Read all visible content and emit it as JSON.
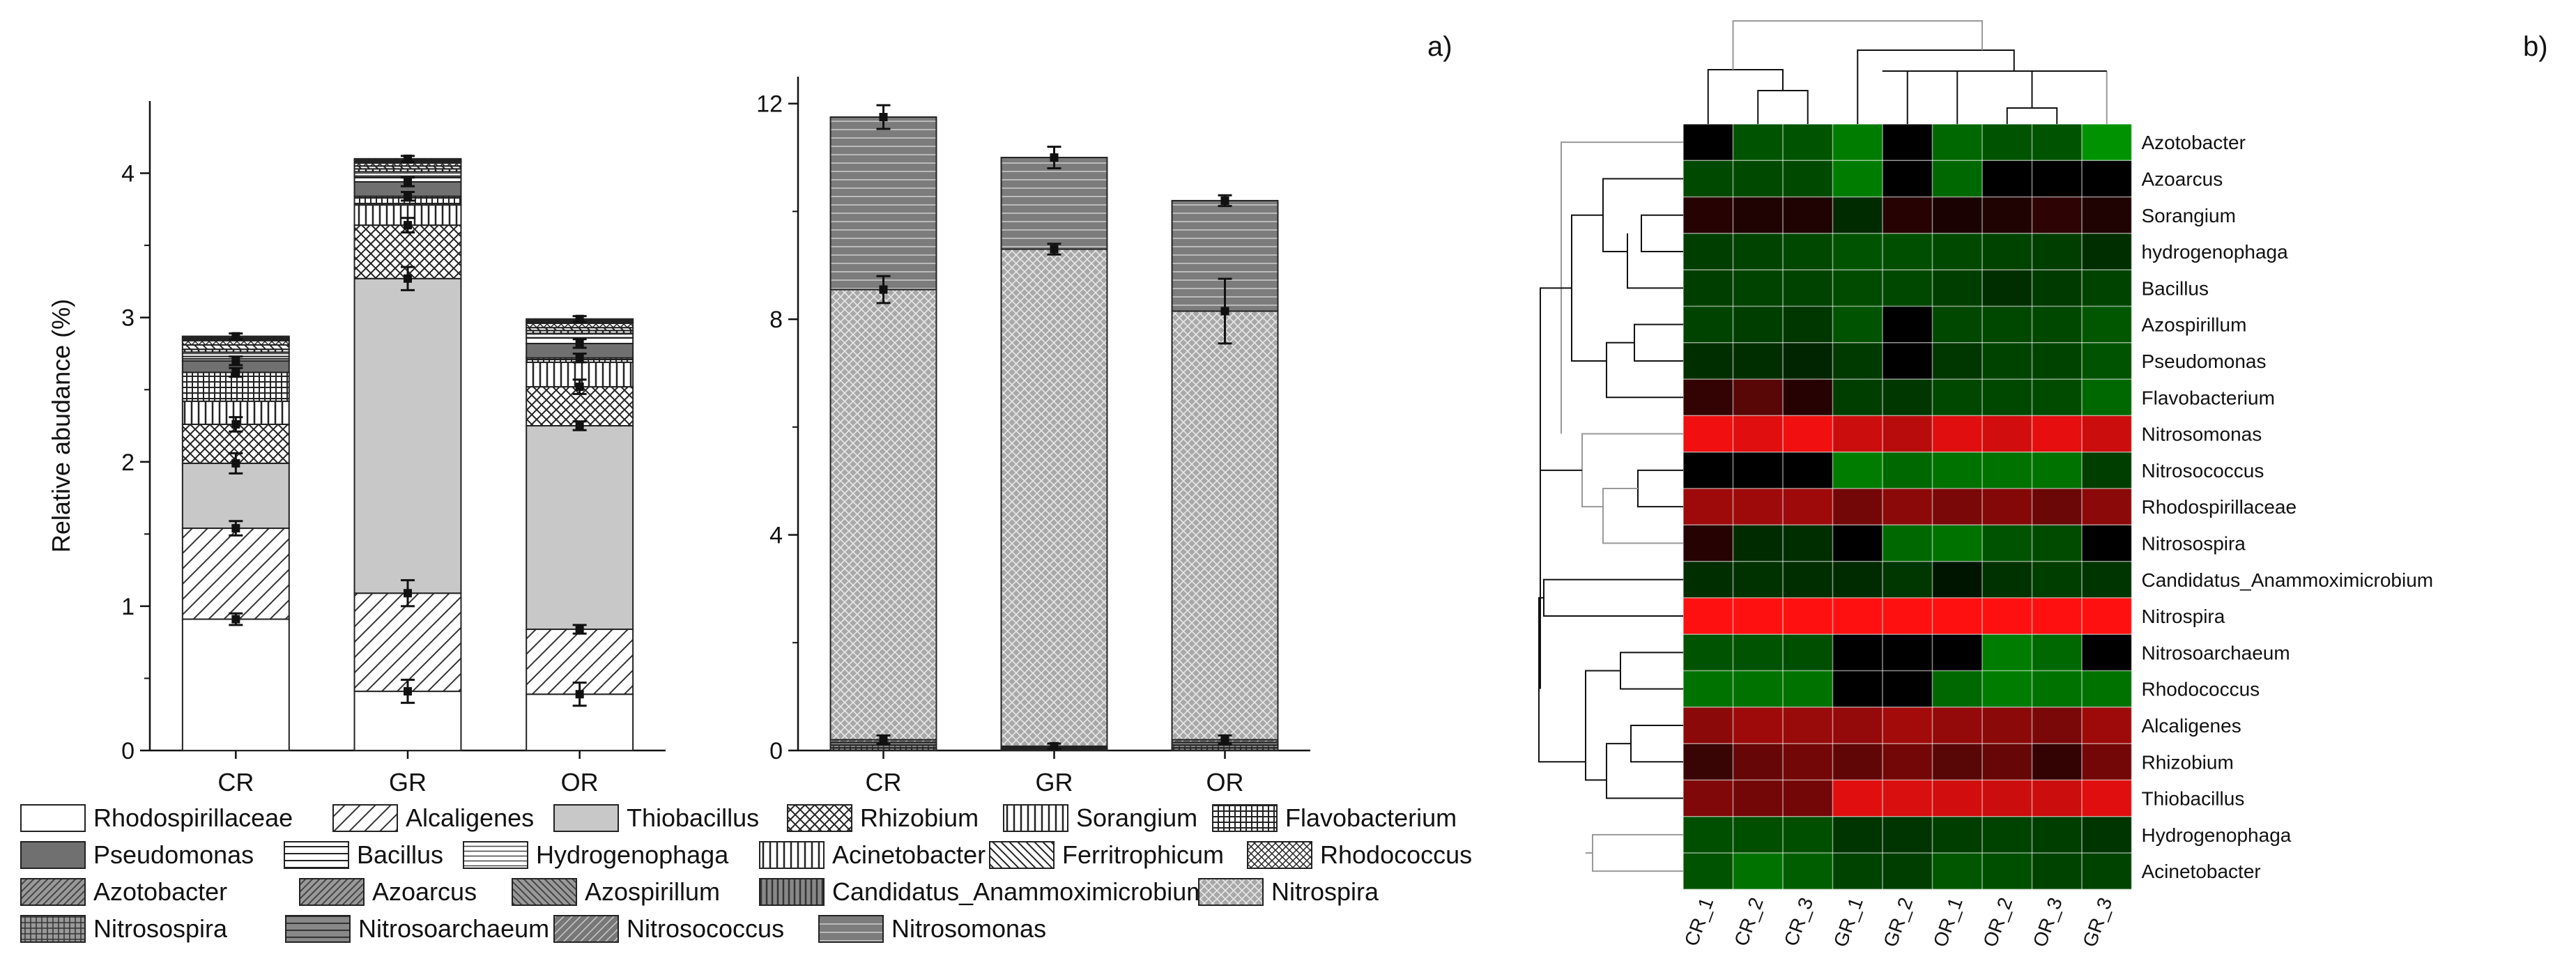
{
  "panel_labels": {
    "left": "a)",
    "right": "b)"
  },
  "chart_data": [
    {
      "type": "bar",
      "stacked": true,
      "title": "",
      "xlabel": "",
      "ylabel": "Relative abudance (%)",
      "ylim": [
        0,
        4.5
      ],
      "yticks": [
        "0",
        "1",
        "2",
        "3",
        "4"
      ],
      "categories": [
        "CR",
        "GR",
        "OR"
      ],
      "series": [
        {
          "name": "Rhodospirillaceae",
          "values": [
            0.91,
            0.41,
            0.39
          ]
        },
        {
          "name": "Alcaligenes",
          "values": [
            0.63,
            0.68,
            0.45
          ]
        },
        {
          "name": "Thiobacillus",
          "values": [
            0.45,
            2.18,
            1.41
          ]
        },
        {
          "name": "Rhizobium",
          "values": [
            0.27,
            0.37,
            0.27
          ]
        },
        {
          "name": "Sorangium",
          "values": [
            0.16,
            0.14,
            0.17
          ]
        },
        {
          "name": "Flavobacterium",
          "values": [
            0.2,
            0.06,
            0.03
          ]
        },
        {
          "name": "Pseudomonas",
          "values": [
            0.08,
            0.1,
            0.1
          ]
        },
        {
          "name": "Bacillus",
          "values": [
            0.03,
            0.04,
            0.04
          ]
        },
        {
          "name": "Hydrogenophaga",
          "values": [
            0.03,
            0.03,
            0.03
          ]
        },
        {
          "name": "Acinetobacter",
          "values": [
            0.02,
            0.02,
            0.02
          ]
        },
        {
          "name": "Ferritrophicum",
          "values": [
            0.03,
            0.02,
            0.02
          ]
        },
        {
          "name": "Rhodococcus",
          "values": [
            0.03,
            0.02,
            0.03
          ]
        },
        {
          "name": "Azotobacter",
          "values": [
            0.01,
            0.01,
            0.01
          ]
        },
        {
          "name": "Azoarcus",
          "values": [
            0.01,
            0.01,
            0.01
          ]
        },
        {
          "name": "Azospirillum",
          "values": [
            0.01,
            0.01,
            0.01
          ]
        }
      ],
      "error_bars": [
        {
          "series": "Rhodospirillaceae",
          "values": [
            0.04,
            0.08,
            0.08
          ]
        },
        {
          "series": "Alcaligenes",
          "values": [
            0.05,
            0.09,
            0.03
          ]
        },
        {
          "series": "Thiobacillus",
          "values": [
            0.07,
            0.08,
            0.03
          ]
        },
        {
          "series": "Rhizobium",
          "values": [
            0.05,
            0.05,
            0.05
          ]
        },
        {
          "series": "Flavobacterium",
          "values": [
            0.03,
            0.03,
            0.03
          ]
        },
        {
          "series": "Pseudomonas",
          "values": [
            0.03,
            0.03,
            0.03
          ]
        },
        {
          "series": "Azospirillum",
          "values": [
            0.02,
            0.02,
            0.02
          ]
        }
      ]
    },
    {
      "type": "bar",
      "stacked": true,
      "title": "",
      "xlabel": "",
      "ylabel": "",
      "ylim": [
        0,
        12.5
      ],
      "yticks": [
        "0",
        "4",
        "8",
        "12"
      ],
      "categories": [
        "CR",
        "GR",
        "OR"
      ],
      "series": [
        {
          "name": "Candidatus_Anammoximicrobium",
          "values": [
            0.05,
            0.02,
            0.05
          ]
        },
        {
          "name": "Nitrosospira",
          "values": [
            0.05,
            0.02,
            0.05
          ]
        },
        {
          "name": "Nitrosoarchaeum",
          "values": [
            0.05,
            0.02,
            0.05
          ]
        },
        {
          "name": "Nitrosococcus",
          "values": [
            0.05,
            0.02,
            0.05
          ]
        },
        {
          "name": "Nitrospira",
          "values": [
            8.35,
            9.22,
            7.95
          ]
        },
        {
          "name": "Nitrosomonas",
          "values": [
            3.2,
            1.7,
            2.05
          ]
        }
      ],
      "error_bars": [
        {
          "series": "Nitrosococcus",
          "values": [
            0.08,
            0.05,
            0.08
          ]
        },
        {
          "series": "Nitrospira",
          "values": [
            0.25,
            0.1,
            0.6
          ]
        },
        {
          "series": "Nitrosomonas",
          "values": [
            0.22,
            0.2,
            0.1
          ]
        }
      ]
    },
    {
      "type": "heatmap",
      "title": "",
      "xlabel": "",
      "ylabel": "",
      "columns": [
        "CR_1",
        "CR_2",
        "CR_3",
        "GR_1",
        "GR_2",
        "OR_1",
        "OR_2",
        "OR_3",
        "GR_3"
      ],
      "rows": [
        "Azotobacter",
        "Azoarcus",
        "Sorangium",
        "hydrogenophaga",
        "Bacillus",
        "Azospirillum",
        "Pseudomonas",
        "Flavobacterium",
        "Nitrosomonas",
        "Nitrosococcus",
        "Rhodospirillaceae",
        "Nitrosospira",
        "Candidatus_Anammoximicrobium",
        "Nitrospira",
        "Nitrosoarchaeum",
        "Rhodococcus",
        "Alcaligenes",
        "Rhizobium",
        "Thiobacillus",
        "Hydrogenophaga",
        "Acinetobacter"
      ],
      "color_scale": {
        "low": "#00d000",
        "mid": "#000000",
        "high": "#ff1010"
      },
      "values": [
        [
          0.0,
          -0.4,
          -0.4,
          -0.6,
          0.0,
          -0.5,
          -0.4,
          -0.4,
          -0.7
        ],
        [
          -0.35,
          -0.35,
          -0.35,
          -0.6,
          0.0,
          -0.5,
          0.0,
          0.0,
          0.0
        ],
        [
          0.15,
          0.12,
          0.12,
          -0.2,
          0.15,
          0.1,
          0.12,
          0.18,
          0.12
        ],
        [
          -0.3,
          -0.32,
          -0.34,
          -0.4,
          -0.38,
          -0.35,
          -0.32,
          -0.3,
          -0.22
        ],
        [
          -0.3,
          -0.32,
          -0.32,
          -0.36,
          -0.34,
          -0.3,
          -0.22,
          -0.28,
          -0.32
        ],
        [
          -0.32,
          -0.3,
          -0.26,
          -0.4,
          0.0,
          -0.34,
          -0.34,
          -0.34,
          -0.42
        ],
        [
          -0.22,
          -0.22,
          -0.18,
          -0.28,
          0.0,
          -0.26,
          -0.32,
          -0.32,
          -0.4
        ],
        [
          0.2,
          0.35,
          0.15,
          -0.3,
          -0.26,
          -0.34,
          -0.34,
          -0.36,
          -0.5
        ],
        [
          0.95,
          0.88,
          0.95,
          0.8,
          0.72,
          0.88,
          0.82,
          0.9,
          0.8
        ],
        [
          0.0,
          0.0,
          0.0,
          -0.6,
          -0.5,
          -0.55,
          -0.55,
          -0.55,
          -0.3
        ],
        [
          0.62,
          0.62,
          0.62,
          0.45,
          0.55,
          0.48,
          0.52,
          0.42,
          0.55
        ],
        [
          0.15,
          -0.2,
          -0.22,
          0.0,
          -0.5,
          -0.55,
          -0.4,
          -0.36,
          0.0
        ],
        [
          -0.22,
          -0.24,
          -0.22,
          -0.2,
          -0.26,
          -0.1,
          -0.24,
          -0.3,
          -0.25
        ],
        [
          1.0,
          1.0,
          1.0,
          1.0,
          1.0,
          1.0,
          1.0,
          1.0,
          1.0
        ],
        [
          -0.4,
          -0.4,
          -0.38,
          0.0,
          0.0,
          0.0,
          -0.6,
          -0.5,
          0.0
        ],
        [
          -0.55,
          -0.55,
          -0.55,
          0.0,
          0.0,
          -0.5,
          -0.6,
          -0.55,
          -0.55
        ],
        [
          0.55,
          0.62,
          0.6,
          0.58,
          0.64,
          0.58,
          0.55,
          0.48,
          0.62
        ],
        [
          0.22,
          0.4,
          0.45,
          0.38,
          0.45,
          0.35,
          0.4,
          0.2,
          0.45
        ],
        [
          0.5,
          0.45,
          0.45,
          0.88,
          0.85,
          0.82,
          0.8,
          0.8,
          0.88
        ],
        [
          -0.38,
          -0.38,
          -0.38,
          -0.25,
          -0.25,
          -0.3,
          -0.32,
          -0.3,
          -0.25
        ],
        [
          -0.4,
          -0.55,
          -0.45,
          -0.32,
          -0.3,
          -0.42,
          -0.38,
          -0.32,
          -0.32
        ]
      ]
    }
  ]
}
